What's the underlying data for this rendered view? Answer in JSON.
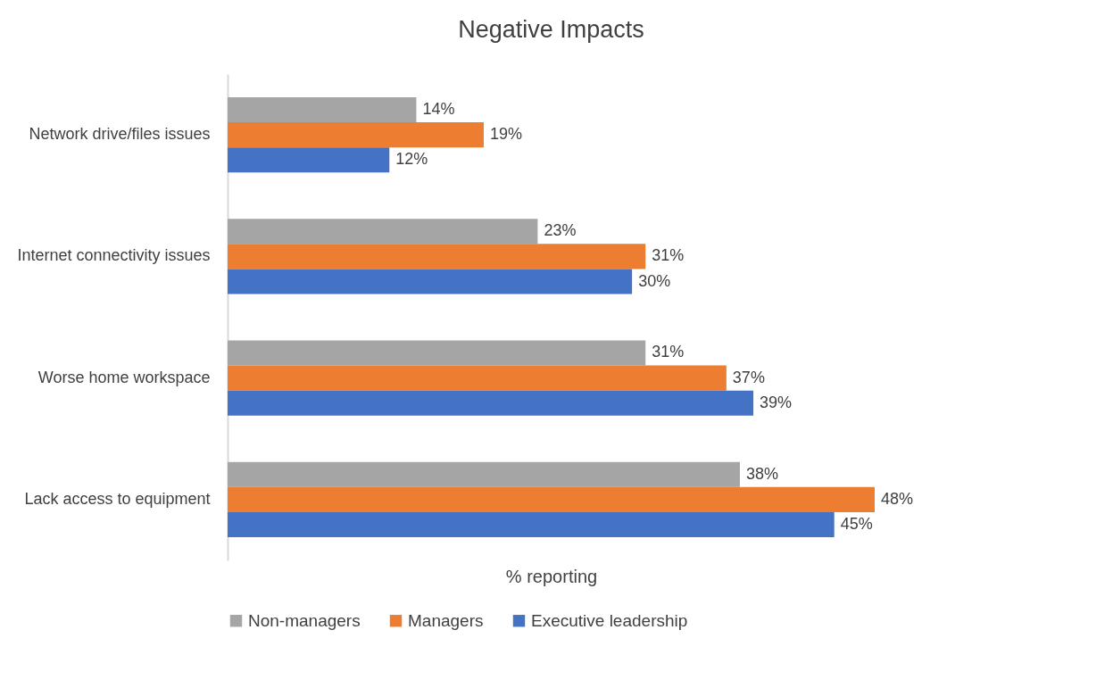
{
  "chart_data": {
    "type": "bar",
    "orientation": "horizontal",
    "title": "Negative Impacts",
    "xlabel": "% reporting",
    "categories": [
      "Network drive/files issues",
      "Internet connectivity issues",
      "Worse home workspace",
      "Lack access to equipment"
    ],
    "series": [
      {
        "name": "Non-managers",
        "color": "#a5a5a5",
        "values": [
          14,
          23,
          31,
          38
        ],
        "value_labels": [
          "14%",
          "23%",
          "31%",
          "38%"
        ]
      },
      {
        "name": "Managers",
        "color": "#ed7d31",
        "values": [
          19,
          31,
          37,
          48
        ],
        "value_labels": [
          "19%",
          "31%",
          "37%",
          "48%"
        ]
      },
      {
        "name": "Executive leadership",
        "color": "#4472c4",
        "values": [
          12,
          30,
          39,
          45
        ],
        "value_labels": [
          "12%",
          "30%",
          "39%",
          "45%"
        ]
      }
    ],
    "grid": false,
    "legend": "bottom",
    "tick_labels": "y"
  }
}
